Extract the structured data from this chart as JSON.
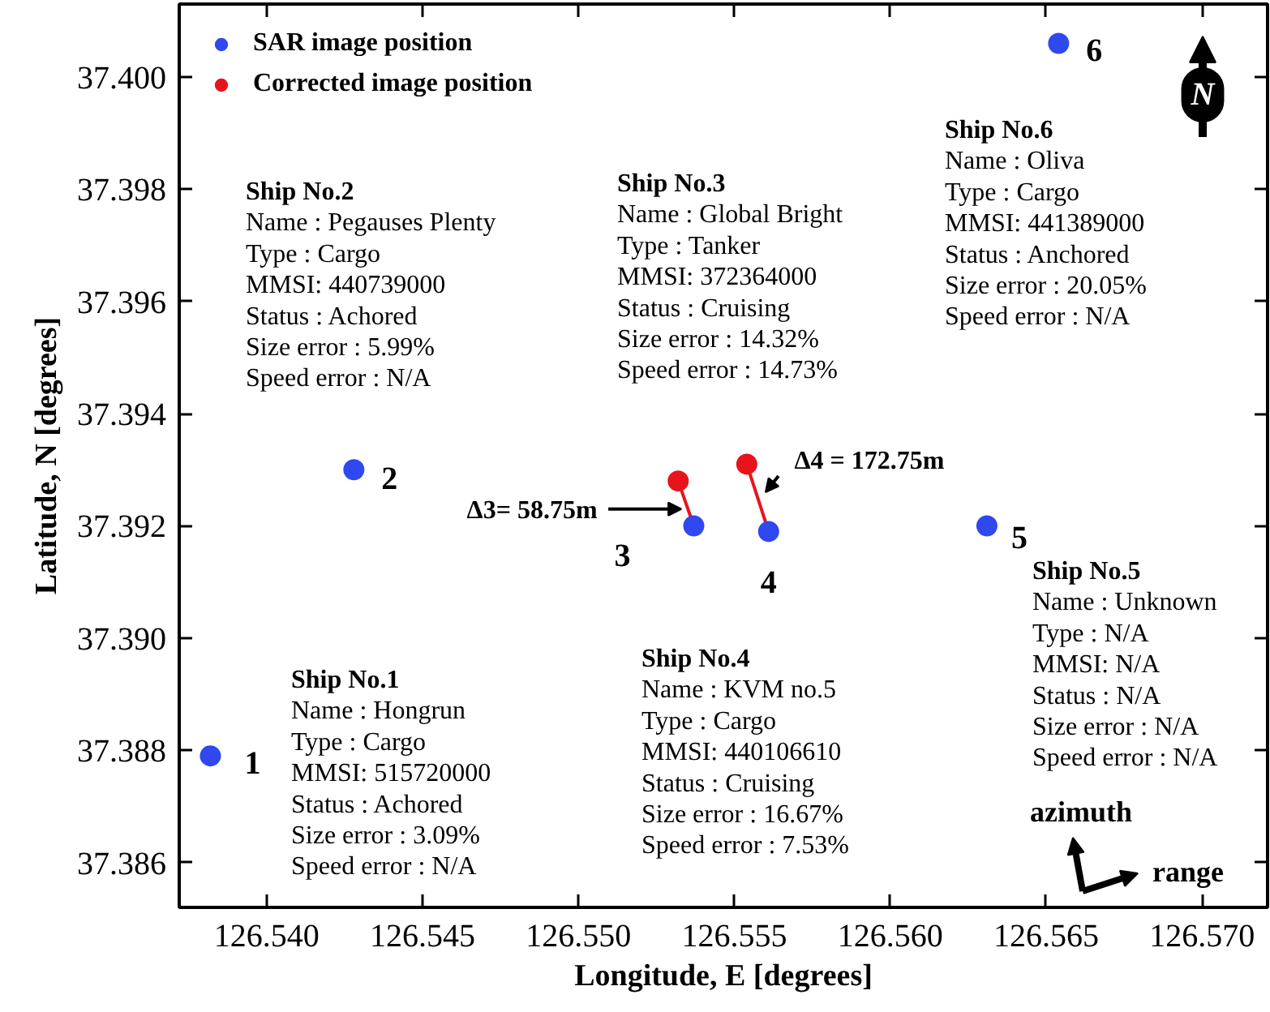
{
  "chart_data": {
    "type": "scatter",
    "xlabel": "Longitude, E [degrees]",
    "ylabel": "Latitude, N [degrees]",
    "xlim": [
      126.5372,
      126.5721
    ],
    "ylim": [
      37.3852,
      37.4013
    ],
    "xticks": [
      {
        "value": 126.54,
        "label": "126.540"
      },
      126.545,
      {
        "value": 126.55,
        "label": "126.550"
      },
      126.555,
      {
        "value": 126.56,
        "label": "126.560"
      },
      126.565,
      {
        "value": 126.57,
        "label": "126.570"
      }
    ],
    "yticks": [
      37.386,
      37.388,
      {
        "value": 37.39,
        "label": "37.390"
      },
      37.392,
      37.394,
      37.396,
      37.398,
      {
        "value": 37.4,
        "label": "37.400"
      }
    ],
    "grid": false,
    "legend": "top left",
    "marker": "circle",
    "series": [
      {
        "name": "SAR image position",
        "color": "#3048f0",
        "x": [
          126.5382,
          126.5428,
          126.5537,
          126.5561,
          126.5631,
          126.5654
        ],
        "values": [
          37.3879,
          37.393,
          37.392,
          37.3919,
          37.392,
          37.4006
        ]
      },
      {
        "name": "Corrected image position",
        "color": "#e8141c",
        "x": [
          126.5532,
          126.5554
        ],
        "values": [
          37.3928,
          37.3931
        ]
      },
      {
        "type": "line",
        "marker": "none",
        "color": "#e8141c",
        "x": [
          126.5537,
          126.5532,
          null,
          126.5561,
          126.5554
        ],
        "values": [
          37.392,
          37.3928,
          null,
          37.3919,
          37.3931
        ]
      }
    ],
    "annotations": [
      "Ship No.1\nName : Hongrun\nType : Cargo\nMMSI: 515720000\nStatus : Achored\nSize error : 3.09%\nSpeed error : N/A",
      "Ship No.2\nName : Pegauses Plenty\nType : Cargo\nMMSI: 440739000\nStatus : Achored\nSize error : 5.99%\nSpeed error : N/A",
      "Ship No.3\nName : Global Bright\nType : Tanker\nMMSI: 372364000\nStatus : Cruising\nSize error : 14.32%\nSpeed error : 14.73%",
      "Ship No.4\nName : KVM no.5\nType : Cargo\nMMSI: 440106610\nStatus : Cruising\nSize error : 16.67%\nSpeed error : 7.53%",
      "Ship No.5\nName : Unknown\nType : N/A\nMMSI: N/A\nStatus : N/A\nSize error : N/A\nSpeed error : N/A",
      "Ship No.6\nName : Oliva\nType : Cargo\nMMSI: 441389000\nStatus : Anchored\nSize error : 20.05%\nSpeed error : N/A",
      {
        "text": "1",
        "x": 126.5382,
        "y": 37.3879
      },
      {
        "text": "2",
        "x": 126.5428,
        "y": 37.393
      },
      {
        "text": "3",
        "x": 126.5537,
        "y": 37.392
      },
      {
        "text": "4",
        "x": 126.5561,
        "y": 37.3919
      },
      {
        "text": "5",
        "x": 126.5631,
        "y": 37.392
      },
      {
        "text": "6",
        "x": 126.5654,
        "y": 37.4006
      },
      {
        "text": "Δ3= 58.75m",
        "x": 126.5533,
        "y": 37.3923
      },
      {
        "text": "Δ4 = 172.75m",
        "x": 126.556,
        "y": 37.3926
      },
      "azimuth",
      "range",
      "N"
    ]
  }
}
